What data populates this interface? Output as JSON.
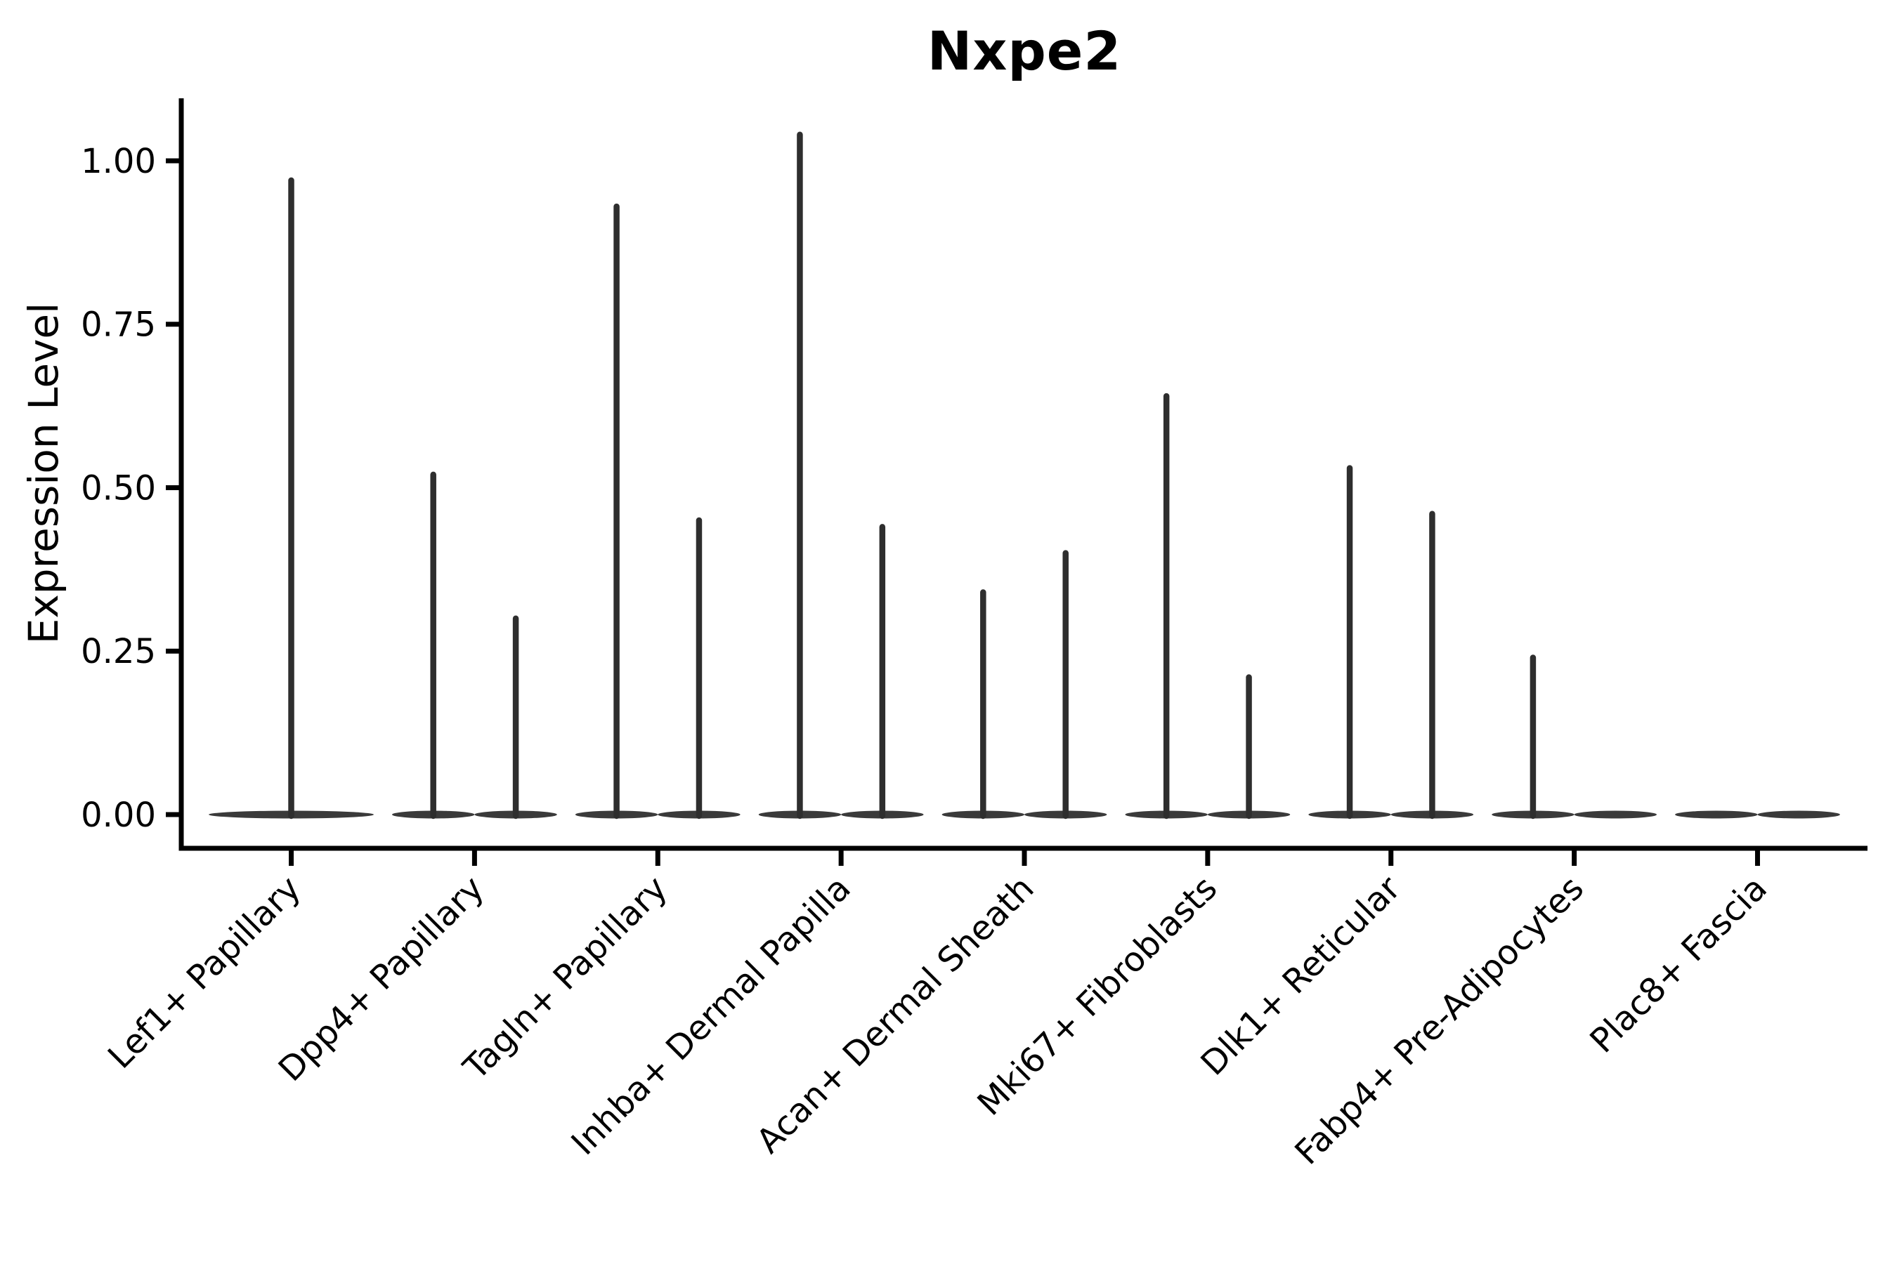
{
  "chart_data": {
    "type": "violin",
    "title": "Nxpe2",
    "ylabel": "Expression Level",
    "xlabel": "",
    "legend": "none",
    "grid": false,
    "ylim": [
      -0.05,
      1.1
    ],
    "yticks": [
      {
        "value": 0.0,
        "label": "0.00"
      },
      {
        "value": 0.25,
        "label": "0.25"
      },
      {
        "value": 0.5,
        "label": "0.50"
      },
      {
        "value": 0.75,
        "label": "0.75"
      },
      {
        "value": 1.0,
        "label": "1.00"
      }
    ],
    "description": "Split violin plot of Nxpe2 expression; each category shows flat density at 0 with thin spikes up to the max expression per split group",
    "categories": [
      {
        "label": "Lef1+ Papillary",
        "violins": [
          {
            "group": "single",
            "peak": 0.97
          }
        ]
      },
      {
        "label": "Dpp4+ Papillary",
        "violins": [
          {
            "group": "left",
            "peak": 0.52
          },
          {
            "group": "right",
            "peak": 0.3
          }
        ]
      },
      {
        "label": "Tagln+ Papillary",
        "violins": [
          {
            "group": "left",
            "peak": 0.93
          },
          {
            "group": "right",
            "peak": 0.45
          }
        ]
      },
      {
        "label": "Inhba+ Dermal Papilla",
        "violins": [
          {
            "group": "left",
            "peak": 1.04
          },
          {
            "group": "right",
            "peak": 0.44
          }
        ]
      },
      {
        "label": "Acan+ Dermal Sheath",
        "violins": [
          {
            "group": "left",
            "peak": 0.34
          },
          {
            "group": "right",
            "peak": 0.4
          }
        ]
      },
      {
        "label": "Mki67+ Fibroblasts",
        "violins": [
          {
            "group": "left",
            "peak": 0.64
          },
          {
            "group": "right",
            "peak": 0.21
          }
        ]
      },
      {
        "label": "Dlk1+ Reticular",
        "violins": [
          {
            "group": "left",
            "peak": 0.53
          },
          {
            "group": "right",
            "peak": 0.46
          }
        ]
      },
      {
        "label": "Fabp4+ Pre-Adipocytes",
        "violins": [
          {
            "group": "left",
            "peak": 0.24
          },
          {
            "group": "right",
            "peak": 0.0
          }
        ]
      },
      {
        "label": "Plac8+ Fascia",
        "violins": [
          {
            "group": "left",
            "peak": 0.0
          },
          {
            "group": "right",
            "peak": 0.0
          }
        ]
      }
    ],
    "colors": {
      "axis": "#000000",
      "text": "#000000",
      "violin_fill": "#3a3a3a",
      "spike": "#2e2e2e"
    }
  }
}
